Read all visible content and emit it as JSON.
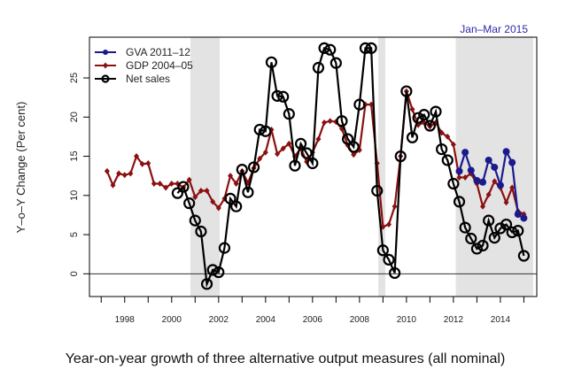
{
  "chart_data": {
    "type": "line",
    "title": "Year-on-year growth of three alternative output measures (all nominal)",
    "annotation": "Jan–Mar 2015",
    "xlabel": "",
    "ylabel": "Y–o–Y Change (Per cent)",
    "xlim": [
      1996.5,
      2015.55
    ],
    "ylim": [
      -2.9,
      30.2
    ],
    "xticks": [
      1998,
      2000,
      2002,
      2004,
      2006,
      2008,
      2010,
      2012,
      2014
    ],
    "xtick_labels": [
      "1998",
      "2000",
      "2002",
      "2004",
      "2006",
      "2008",
      "2010",
      "2012",
      "2014"
    ],
    "yticks": [
      0,
      5,
      10,
      15,
      20,
      25
    ],
    "ytick_labels": [
      "0",
      "5",
      "10",
      "15",
      "20",
      "25"
    ],
    "shaded_periods": [
      [
        2000.8,
        2002.05
      ],
      [
        2008.8,
        2009.1
      ],
      [
        2012.1,
        2015.4
      ]
    ],
    "legend_position": "top-left",
    "series": [
      {
        "name": "GVA 2011–12",
        "color": "#1a1a8c",
        "marker": "filled-circle",
        "x_start": 2012.25,
        "x_step": 0.25,
        "values": [
          13.1,
          15.5,
          13.2,
          11.9,
          11.7,
          14.5,
          13.6,
          11.3,
          15.6,
          14.2,
          7.6,
          7.1
        ]
      },
      {
        "name": "GDP 2004–05",
        "color": "#8b1010",
        "marker": "diamond",
        "x_start": 1997.25,
        "x_step": 0.25,
        "values": [
          13.1,
          11.3,
          12.8,
          12.6,
          12.8,
          15.0,
          14.0,
          14.1,
          11.5,
          11.5,
          11.0,
          11.5,
          11.5,
          11.0,
          12.0,
          9.8,
          10.6,
          10.6,
          9.2,
          8.4,
          9.6,
          12.5,
          11.5,
          13.1,
          11.6,
          13.5,
          14.7,
          15.5,
          18.4,
          15.3,
          16.0,
          16.6,
          15.0,
          16.0,
          14.3,
          15.5,
          17.2,
          19.3,
          19.5,
          19.4,
          18.5,
          16.4,
          15.2,
          15.8,
          21.6,
          21.6,
          14.1,
          6.0,
          6.3,
          8.6,
          15.0,
          23.3,
          21.0,
          19.0,
          19.3,
          18.8,
          19.3,
          18.0,
          17.5,
          16.5,
          12.3,
          12.3,
          12.8,
          11.5,
          8.6,
          10.1,
          11.8,
          11.0,
          9.1,
          11.0,
          8.0,
          7.6
        ]
      },
      {
        "name": "Net sales",
        "color": "#000000",
        "marker": "open-circle",
        "x_start": 2000.25,
        "x_step": 0.25,
        "values": [
          10.3,
          11.1,
          9.0,
          6.8,
          5.4,
          -1.3,
          0.5,
          0.2,
          3.3,
          9.6,
          8.6,
          13.3,
          10.4,
          13.6,
          18.4,
          18.2,
          27.0,
          22.7,
          22.6,
          20.4,
          13.8,
          16.6,
          15.4,
          14.1,
          26.3,
          28.8,
          28.6,
          26.9,
          19.5,
          17.2,
          16.2,
          21.6,
          28.8,
          28.8,
          10.6,
          3.0,
          1.8,
          0.1,
          15.0,
          23.3,
          17.4,
          19.9,
          20.3,
          18.9,
          20.7,
          15.9,
          14.5,
          11.5,
          9.2,
          5.9,
          4.5,
          3.2,
          3.6,
          6.8,
          4.6,
          5.8,
          6.3,
          5.3,
          5.5,
          2.3
        ]
      }
    ]
  }
}
